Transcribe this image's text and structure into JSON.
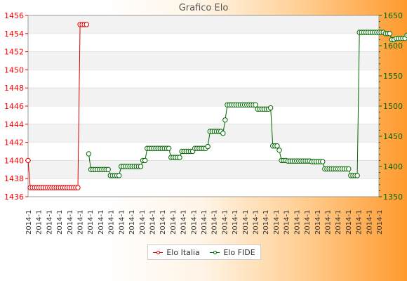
{
  "chart_data": {
    "type": "line",
    "title": "Grafico Elo",
    "y_left": {
      "min": 1436,
      "max": 1456,
      "ticks": [
        "1436",
        "1438",
        "1440",
        "1442",
        "1444",
        "1446",
        "1448",
        "1450",
        "1452",
        "1454",
        "1456"
      ],
      "color": "#ff0000"
    },
    "y_right": {
      "min": 1350,
      "max": 1650,
      "ticks": [
        "1350",
        "1400",
        "1450",
        "1500",
        "1550",
        "1600",
        "1650"
      ],
      "color": "#006600"
    },
    "grid": "horizontal bands",
    "legend_position": "bottom",
    "x_tick_label": "2014-1",
    "x_tick_count": 35,
    "series": [
      {
        "name": "Elo Italia",
        "axis": "left",
        "color": "#dd0000",
        "values": [
          1440,
          1437,
          1437,
          1437,
          1437,
          1437,
          1437,
          1437,
          1437,
          1437,
          1437,
          1437,
          1437,
          1437,
          1437,
          1437,
          1437,
          1437,
          1437,
          1437,
          1437,
          1437,
          1437,
          1437,
          1455,
          1455,
          1455,
          1455
        ]
      },
      {
        "name": "Elo FIDE",
        "axis": "right",
        "color": "#006600",
        "offset": 28,
        "values": [
          1421,
          1395,
          1395,
          1395,
          1395,
          1395,
          1395,
          1395,
          1395,
          1395,
          1385,
          1385,
          1385,
          1385,
          1385,
          1400,
          1400,
          1400,
          1400,
          1400,
          1400,
          1400,
          1400,
          1400,
          1400,
          1410,
          1410,
          1430,
          1430,
          1430,
          1430,
          1430,
          1430,
          1430,
          1430,
          1430,
          1430,
          1430,
          1415,
          1415,
          1415,
          1415,
          1415,
          1425,
          1425,
          1425,
          1425,
          1425,
          1425,
          1430,
          1430,
          1430,
          1430,
          1430,
          1430,
          1433,
          1458,
          1458,
          1458,
          1458,
          1458,
          1458,
          1455,
          1477,
          1502,
          1502,
          1502,
          1502,
          1502,
          1502,
          1502,
          1502,
          1502,
          1502,
          1502,
          1502,
          1502,
          1502,
          1495,
          1495,
          1495,
          1495,
          1495,
          1495,
          1497,
          1434,
          1434,
          1434,
          1427,
          1410,
          1410,
          1410,
          1409,
          1409,
          1409,
          1409,
          1409,
          1409,
          1409,
          1409,
          1409,
          1409,
          1409,
          1408,
          1408,
          1408,
          1408,
          1408,
          1408,
          1396,
          1396,
          1396,
          1396,
          1396,
          1396,
          1396,
          1396,
          1396,
          1396,
          1396,
          1396,
          1385,
          1385,
          1385,
          1385,
          1622,
          1622,
          1622,
          1622,
          1622,
          1622,
          1622,
          1622,
          1622,
          1622,
          1622,
          1622,
          1620,
          1620,
          1620,
          1610,
          1610,
          1612,
          1612,
          1612,
          1612,
          1612,
          1617,
          1617,
          1617,
          1615,
          1615,
          1615,
          1617,
          1617,
          1617
        ]
      }
    ]
  }
}
